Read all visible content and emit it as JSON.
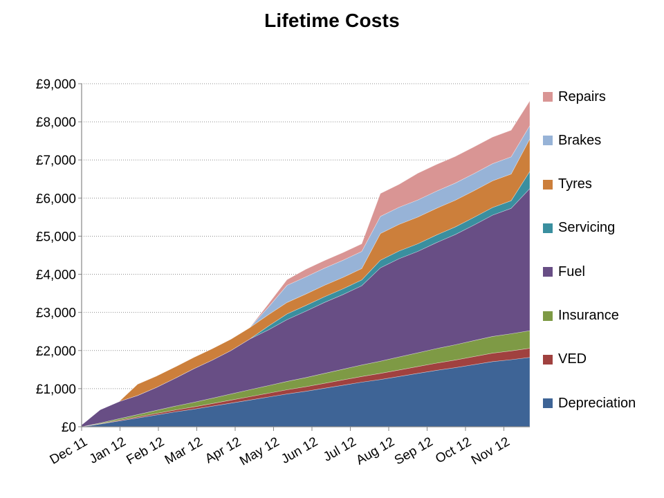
{
  "chart_data": {
    "type": "area",
    "stacked": true,
    "title": "Lifetime Costs",
    "xlabel": "",
    "ylabel": "",
    "ylim": [
      0,
      9000
    ],
    "y_ticks": [
      "£0",
      "£1,000",
      "£2,000",
      "£3,000",
      "£4,000",
      "£5,000",
      "£6,000",
      "£7,000",
      "£8,000",
      "£9,000"
    ],
    "y_tick_values": [
      0,
      1000,
      2000,
      3000,
      4000,
      5000,
      6000,
      7000,
      8000,
      9000
    ],
    "x_ticks": [
      "Dec 11",
      "Jan 12",
      "Feb 12",
      "Mar 12",
      "Apr 12",
      "May 12",
      "Jun 12",
      "Jul 12",
      "Aug 12",
      "Sep 12",
      "Oct 12",
      "Nov 12"
    ],
    "grid": "horizontal dotted",
    "legend_position": "right",
    "x": [
      "Dec 11",
      "mid Dec 11",
      "Jan 12",
      "mid Jan 12",
      "Feb 12",
      "mid Feb 12",
      "Mar 12",
      "mid Mar 12",
      "Apr 12",
      "mid Apr 12",
      "May 12",
      "mid May 12",
      "Jun 12",
      "mid Jun 12",
      "Jul 12",
      "mid Jul 12",
      "Aug 12",
      "mid Aug 12",
      "Sep 12",
      "mid Sep 12",
      "Oct 12",
      "mid Oct 12",
      "Nov 12",
      "mid Nov 12",
      "end Nov 12"
    ],
    "series": [
      {
        "name": "Depreciation",
        "color": "#3E6496",
        "values": [
          0,
          70,
          150,
          230,
          310,
          390,
          460,
          540,
          620,
          700,
          780,
          860,
          930,
          1010,
          1090,
          1170,
          1240,
          1320,
          1400,
          1480,
          1550,
          1630,
          1710,
          1760,
          1820
        ]
      },
      {
        "name": "VED",
        "color": "#A0413F",
        "values": [
          0,
          10,
          20,
          30,
          40,
          50,
          60,
          70,
          80,
          90,
          100,
          110,
          120,
          130,
          140,
          150,
          160,
          170,
          180,
          190,
          200,
          210,
          220,
          230,
          240
        ]
      },
      {
        "name": "Insurance",
        "color": "#7E9A45",
        "values": [
          0,
          20,
          40,
          60,
          80,
          100,
          120,
          140,
          160,
          180,
          200,
          220,
          240,
          260,
          280,
          300,
          320,
          340,
          360,
          380,
          400,
          420,
          440,
          450,
          460
        ]
      },
      {
        "name": "Fuel",
        "color": "#684E85",
        "values": [
          50,
          350,
          450,
          500,
          600,
          730,
          880,
          1000,
          1140,
          1330,
          1460,
          1620,
          1740,
          1860,
          1960,
          2080,
          2450,
          2580,
          2660,
          2780,
          2890,
          3030,
          3180,
          3290,
          3730
        ]
      },
      {
        "name": "Servicing",
        "color": "#3A8F9F",
        "values": [
          0,
          0,
          0,
          0,
          0,
          0,
          0,
          0,
          0,
          0,
          100,
          150,
          150,
          150,
          150,
          150,
          200,
          200,
          200,
          200,
          200,
          200,
          200,
          200,
          450
        ]
      },
      {
        "name": "Tyres",
        "color": "#CC7F3B",
        "values": [
          0,
          0,
          0,
          300,
          300,
          300,
          300,
          300,
          300,
          300,
          300,
          300,
          300,
          300,
          300,
          300,
          700,
          700,
          700,
          700,
          700,
          700,
          700,
          700,
          850
        ]
      },
      {
        "name": "Brakes",
        "color": "#97B3D7",
        "values": [
          0,
          0,
          0,
          0,
          0,
          0,
          0,
          0,
          0,
          0,
          200,
          450,
          450,
          450,
          450,
          450,
          450,
          450,
          450,
          450,
          450,
          450,
          450,
          450,
          350
        ]
      },
      {
        "name": "Repairs",
        "color": "#D99594",
        "values": [
          0,
          0,
          0,
          0,
          0,
          0,
          0,
          0,
          0,
          0,
          80,
          150,
          200,
          200,
          200,
          200,
          600,
          600,
          700,
          700,
          700,
          700,
          700,
          700,
          650
        ]
      }
    ],
    "legend_order": [
      "Repairs",
      "Brakes",
      "Tyres",
      "Servicing",
      "Fuel",
      "Insurance",
      "VED",
      "Depreciation"
    ]
  }
}
